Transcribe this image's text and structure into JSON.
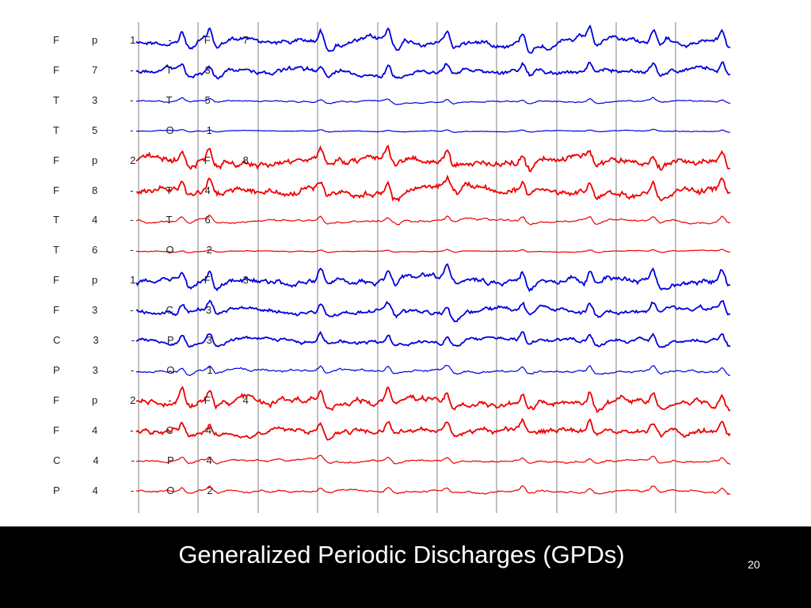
{
  "slide": {
    "title": "Generalized Periodic Discharges (GPDs)",
    "page_number": "20"
  },
  "eeg": {
    "colors": {
      "left": "#0000dd",
      "right": "#ee0000",
      "grid": "#c0c0c0"
    },
    "channels": [
      {
        "label": "Fp1-F7",
        "side": "left"
      },
      {
        "label": "F7-T3",
        "side": "left"
      },
      {
        "label": "T3-T5",
        "side": "left"
      },
      {
        "label": "T5-O1",
        "side": "left"
      },
      {
        "label": "Fp2-F8",
        "side": "right"
      },
      {
        "label": "F8-T4",
        "side": "right"
      },
      {
        "label": "T4-T6",
        "side": "right"
      },
      {
        "label": "T6-O2",
        "side": "right"
      },
      {
        "label": "Fp1-F3",
        "side": "left"
      },
      {
        "label": "F3-C3",
        "side": "left"
      },
      {
        "label": "C3-P3",
        "side": "left"
      },
      {
        "label": "P3-O1",
        "side": "left"
      },
      {
        "label": "Fp2-F4",
        "side": "right"
      },
      {
        "label": "F4-C4",
        "side": "right"
      },
      {
        "label": "C4-P4",
        "side": "right"
      },
      {
        "label": "P4-O2",
        "side": "right"
      }
    ]
  }
}
